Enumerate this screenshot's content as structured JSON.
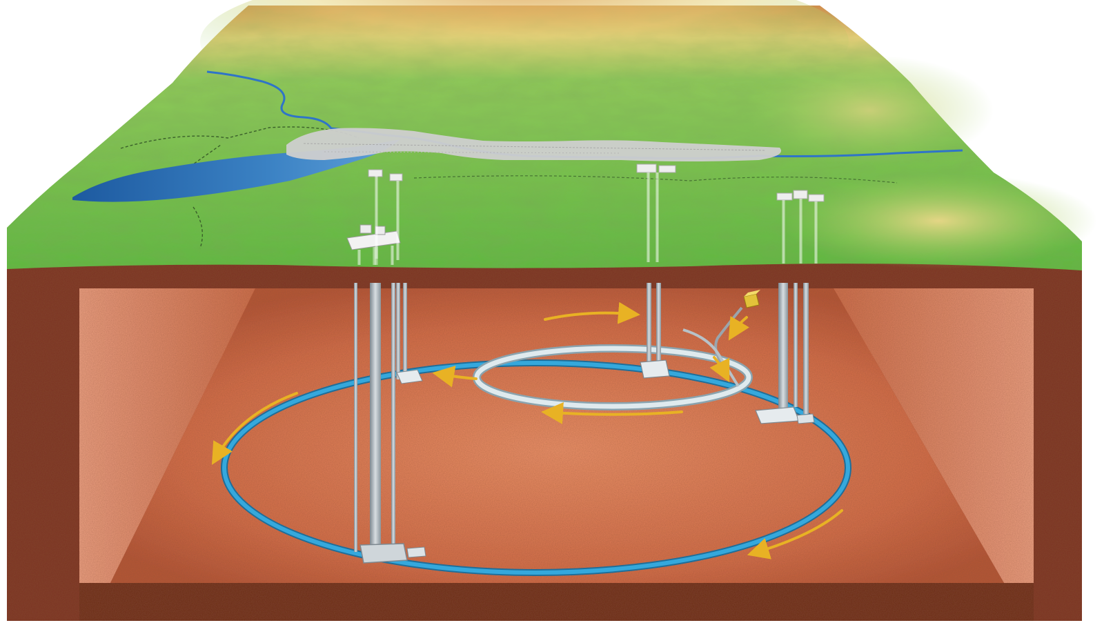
{
  "scene": {
    "colors": {
      "background": "#ffffff",
      "terrain_green": "#6cc04a",
      "terrain_yellow": "#e7dc7a",
      "terrain_orange": "#d9894a",
      "rock_dark": "#6e2b1a",
      "rock_mid": "#9c4a32",
      "cavern_floor": "#d66e45",
      "cavern_wall": "#e98c64",
      "lake_blue": "#2f6fb3",
      "city_gray": "#c9c9c9",
      "ring_large": "#2d9bd3",
      "ring_small": "#c9dde6",
      "arrow_gold": "#e8b224",
      "shaft_gray": "#9aa5ad",
      "building_white": "#eeeeee"
    },
    "icons": [
      "terrain-surface",
      "river",
      "lake",
      "city",
      "surface-building",
      "access-shaft",
      "large-ring-tunnel",
      "small-ring-tunnel",
      "cavern",
      "direction-arrow",
      "transfer-line",
      "yellow-box"
    ]
  }
}
